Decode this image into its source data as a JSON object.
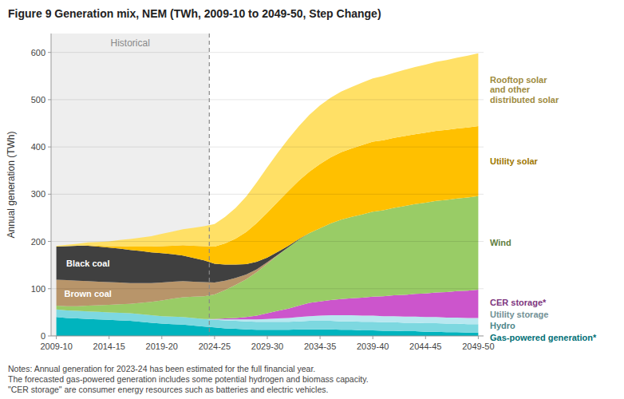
{
  "chart_data": {
    "type": "area",
    "stacked": true,
    "title": "Figure 9 Generation mix, NEM (TWh, 2009-10 to 2049-50, Step Change)",
    "y_label": "Annual generation (TWh)",
    "x": [
      0,
      1,
      2,
      3,
      4,
      5,
      6,
      7,
      8,
      9,
      10,
      11,
      12,
      13,
      14,
      15,
      16,
      17,
      18,
      19,
      20,
      21,
      22,
      23,
      24,
      25,
      26,
      27,
      28,
      29,
      30,
      31,
      32,
      33,
      34,
      35,
      36,
      37,
      38,
      39,
      40
    ],
    "xlim": [
      -0.5,
      40.5
    ],
    "xticks": [
      {
        "value": 0,
        "label": "2009-10"
      },
      {
        "value": 5,
        "label": "2014-15"
      },
      {
        "value": 10,
        "label": "2019-20"
      },
      {
        "value": 15,
        "label": "2024-25"
      },
      {
        "value": 20,
        "label": "2029-30"
      },
      {
        "value": 25,
        "label": "2034-35"
      },
      {
        "value": 30,
        "label": "2039-40"
      },
      {
        "value": 35,
        "label": "2044-45"
      },
      {
        "value": 40,
        "label": "2049-50"
      }
    ],
    "ylim": [
      0,
      640
    ],
    "yticks": [
      0,
      100,
      200,
      300,
      400,
      500,
      600
    ],
    "grid": true,
    "series": [
      {
        "name": "Gas-powered generation*",
        "color": "#00b4be",
        "values": [
          40,
          38,
          37,
          36,
          35,
          34,
          33,
          32,
          30,
          28,
          26,
          25,
          24,
          22,
          20,
          18,
          16,
          15,
          14,
          13,
          13,
          13,
          13,
          14,
          14,
          14,
          14,
          13,
          13,
          12,
          12,
          11,
          11,
          10,
          10,
          9,
          9,
          8,
          8,
          7,
          7
        ]
      },
      {
        "name": "Hydro",
        "color": "#7dd8e0",
        "values": [
          16,
          16,
          16,
          16,
          16,
          16,
          16,
          16,
          16,
          16,
          16,
          16,
          16,
          16,
          16,
          16,
          17,
          17,
          17,
          17,
          17,
          17,
          17,
          17,
          18,
          18,
          18,
          18,
          18,
          18,
          18,
          18,
          18,
          18,
          18,
          18,
          18,
          18,
          18,
          18,
          18
        ]
      },
      {
        "name": "Utility storage",
        "color": "#b8e8f0",
        "values": [
          0,
          0,
          0,
          0,
          0,
          0,
          0,
          0,
          0,
          0,
          0,
          0,
          0,
          0,
          0,
          1,
          2,
          3,
          4,
          5,
          6,
          7,
          8,
          9,
          10,
          11,
          12,
          13,
          13,
          13,
          13,
          13,
          13,
          13,
          13,
          13,
          13,
          13,
          13,
          13,
          13
        ]
      },
      {
        "name": "CER storage*",
        "color": "#cc55cc",
        "values": [
          0,
          0,
          0,
          0,
          0,
          0,
          0,
          0,
          0,
          0,
          0,
          0,
          0,
          0,
          0,
          1,
          2,
          3,
          5,
          8,
          12,
          16,
          20,
          24,
          28,
          30,
          32,
          34,
          36,
          38,
          40,
          42,
          44,
          46,
          48,
          50,
          52,
          54,
          56,
          58,
          60
        ]
      },
      {
        "name": "Wind",
        "color": "#99cc66",
        "values": [
          8,
          9,
          10,
          12,
          14,
          16,
          18,
          20,
          24,
          28,
          33,
          38,
          42,
          45,
          48,
          52,
          60,
          70,
          80,
          92,
          105,
          118,
          130,
          140,
          148,
          155,
          162,
          168,
          172,
          176,
          180,
          182,
          185,
          188,
          190,
          192,
          194,
          195,
          196,
          197,
          198
        ]
      },
      {
        "name": "Brown coal",
        "color": "#b8956a",
        "values": [
          55,
          55,
          54,
          52,
          50,
          48,
          46,
          44,
          42,
          40,
          38,
          36,
          34,
          32,
          30,
          25,
          20,
          15,
          10,
          6,
          3,
          1,
          0,
          0,
          0,
          0,
          0,
          0,
          0,
          0,
          0,
          0,
          0,
          0,
          0,
          0,
          0,
          0,
          0,
          0,
          0
        ]
      },
      {
        "name": "Black coal",
        "color": "#404040",
        "values": [
          70,
          72,
          74,
          75,
          74,
          73,
          72,
          70,
          68,
          65,
          62,
          58,
          54,
          50,
          46,
          40,
          34,
          28,
          22,
          16,
          10,
          6,
          3,
          1,
          0,
          0,
          0,
          0,
          0,
          0,
          0,
          0,
          0,
          0,
          0,
          0,
          0,
          0,
          0,
          0,
          0
        ]
      },
      {
        "name": "Utility solar",
        "color": "#ffc000",
        "values": [
          0,
          0,
          0,
          1,
          2,
          3,
          5,
          7,
          9,
          12,
          15,
          18,
          22,
          26,
          30,
          36,
          45,
          55,
          68,
          82,
          95,
          106,
          116,
          124,
          130,
          136,
          140,
          143,
          145,
          147,
          148,
          148,
          148,
          148,
          148,
          148,
          148,
          148,
          148,
          148,
          148
        ]
      },
      {
        "name": "Rooftop solar\nand other\ndistributed solar",
        "color": "#ffe066",
        "values": [
          2,
          3,
          4,
          6,
          8,
          10,
          13,
          16,
          19,
          22,
          26,
          30,
          34,
          38,
          42,
          48,
          56,
          65,
          75,
          86,
          96,
          104,
          110,
          115,
          120,
          124,
          126,
          128,
          130,
          132,
          134,
          136,
          138,
          140,
          142,
          144,
          146,
          148,
          150,
          152,
          154
        ]
      }
    ],
    "annotations": [
      {
        "text": "Historical",
        "x_range": [
          -0.5,
          14.5
        ]
      },
      {
        "text": "Notes: Annual generation for 2023-24 has been estimated for the full financial year."
      },
      {
        "text": "The forecasted gas-powered generation includes some potential hydrogen and biomass capacity."
      },
      {
        "text": "\"CER storage\" are consumer energy resources such as batteries and electric vehicles."
      }
    ]
  }
}
